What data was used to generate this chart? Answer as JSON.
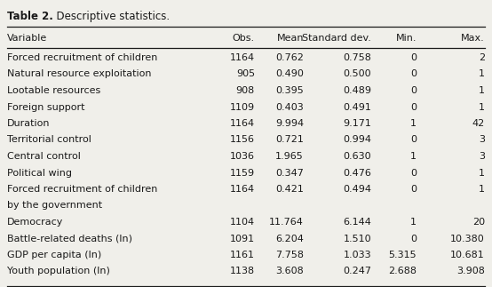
{
  "title_bold": "Table 2.",
  "title_normal": "  Descriptive statistics.",
  "headers": [
    "Variable",
    "Obs.",
    "Mean",
    "Standard dev.",
    "Min.",
    "Max."
  ],
  "rows": [
    [
      "Forced recruitment of children",
      "1164",
      "0.762",
      "0.758",
      "0",
      "2"
    ],
    [
      "Natural resource exploitation",
      "905",
      "0.490",
      "0.500",
      "0",
      "1"
    ],
    [
      "Lootable resources",
      "908",
      "0.395",
      "0.489",
      "0",
      "1"
    ],
    [
      "Foreign support",
      "1109",
      "0.403",
      "0.491",
      "0",
      "1"
    ],
    [
      "Duration",
      "1164",
      "9.994",
      "9.171",
      "1",
      "42"
    ],
    [
      "Territorial control",
      "1156",
      "0.721",
      "0.994",
      "0",
      "3"
    ],
    [
      "Central control",
      "1036",
      "1.965",
      "0.630",
      "1",
      "3"
    ],
    [
      "Political wing",
      "1159",
      "0.347",
      "0.476",
      "0",
      "1"
    ],
    [
      "Forced recruitment of children",
      "1164",
      "0.421",
      "0.494",
      "0",
      "1"
    ],
    [
      "by the government",
      "",
      "",
      "",
      "",
      ""
    ],
    [
      "Democracy",
      "1104",
      "11.764",
      "6.144",
      "1",
      "20"
    ],
    [
      "Battle-related deaths (ln)",
      "1091",
      "6.204",
      "1.510",
      "0",
      "10.380"
    ],
    [
      "GDP per capita (ln)",
      "1161",
      "7.758",
      "1.033",
      "5.315",
      "10.681"
    ],
    [
      "Youth population (ln)",
      "1138",
      "3.608",
      "0.247",
      "2.688",
      "3.908"
    ]
  ],
  "bg_color": "#f0efea",
  "text_color": "#1a1a1a",
  "font_size": 8.0,
  "title_font_size": 8.5,
  "header_font_size": 8.0
}
